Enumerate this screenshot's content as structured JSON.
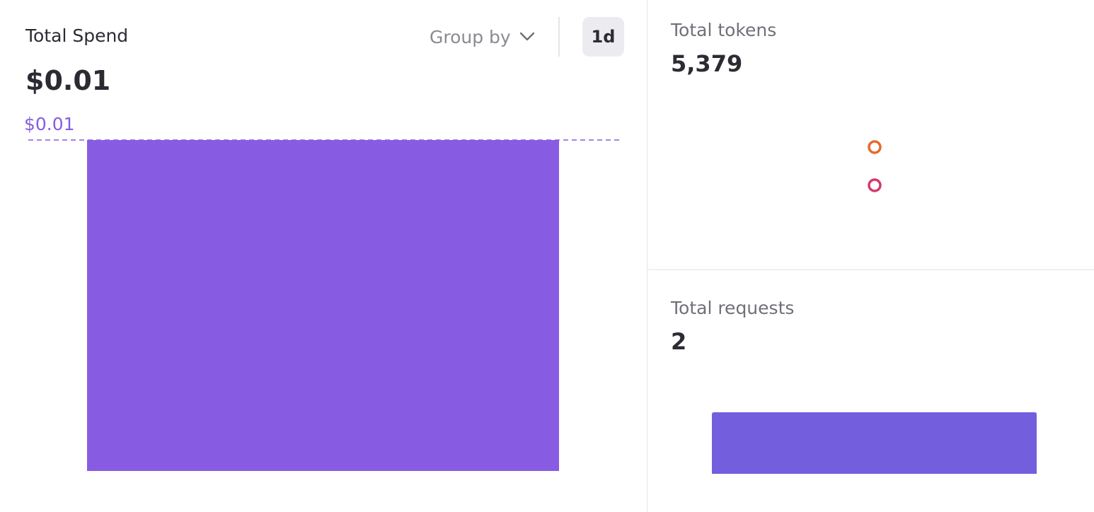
{
  "spend": {
    "title": "Total Spend",
    "value": "$0.01",
    "group_by_label": "Group by",
    "range_label": "1d",
    "max_label": "$0.01",
    "bar_color": "#885CE2"
  },
  "tokens": {
    "label": "Total tokens",
    "value": "5,379",
    "marker_colors": [
      "#E8692A",
      "#D43A6B"
    ]
  },
  "requests": {
    "label": "Total requests",
    "value": "2",
    "bar_color": "#735FDD"
  },
  "chart_data": [
    {
      "type": "bar",
      "categories": [
        ""
      ],
      "values": [
        0.01
      ],
      "ylim": [
        0,
        0.01
      ],
      "reference_line_label": "$0.01"
    },
    {
      "type": "scatter",
      "series": [
        {
          "values": [
            1
          ],
          "color": "#E8692A"
        },
        {
          "values": [
            1
          ],
          "color": "#D43A6B"
        }
      ]
    },
    {
      "type": "bar",
      "categories": [
        ""
      ],
      "values": [
        2
      ]
    }
  ]
}
